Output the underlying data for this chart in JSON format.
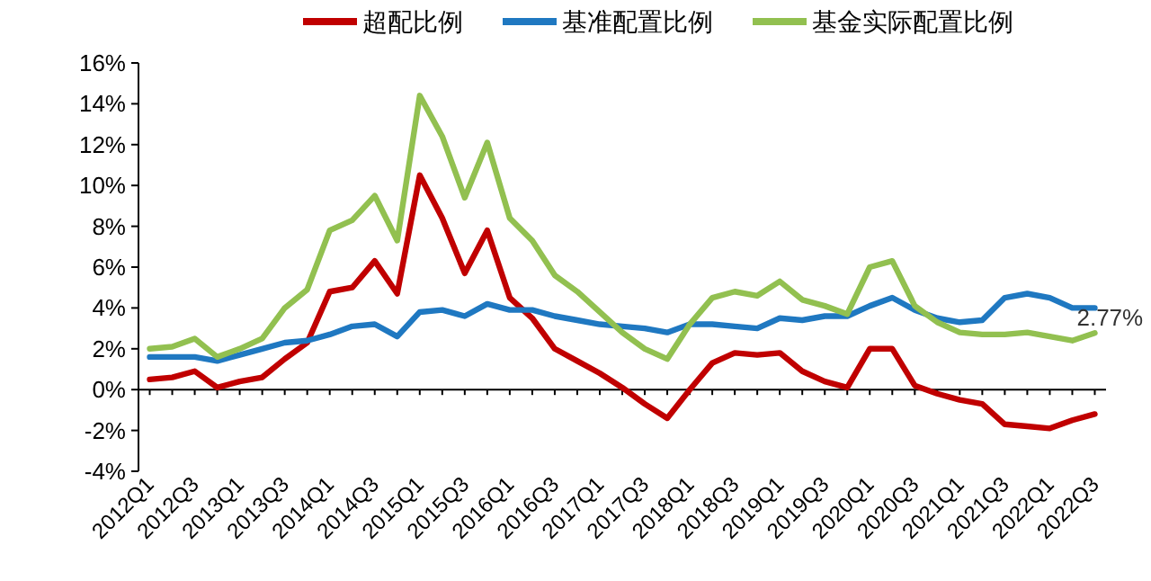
{
  "chart_data": {
    "type": "line",
    "categories": [
      "2012Q1",
      null,
      "2012Q3",
      null,
      "2013Q1",
      null,
      "2013Q3",
      null,
      "2014Q1",
      null,
      "2014Q3",
      null,
      "2015Q1",
      null,
      "2015Q3",
      null,
      "2016Q1",
      null,
      "2016Q3",
      null,
      "2017Q1",
      null,
      "2017Q3",
      null,
      "2018Q1",
      null,
      "2018Q3",
      null,
      "2019Q1",
      null,
      "2019Q3",
      null,
      "2020Q1",
      null,
      "2020Q3",
      null,
      "2021Q1",
      null,
      "2021Q3",
      null,
      "2022Q1",
      null,
      "2022Q3"
    ],
    "series": [
      {
        "name": "超配比例",
        "color": "#c00000",
        "values": [
          0.5,
          0.6,
          0.9,
          0.1,
          0.4,
          0.6,
          1.5,
          2.3,
          4.8,
          5.0,
          6.3,
          4.7,
          10.5,
          8.4,
          5.7,
          7.8,
          4.5,
          3.5,
          2.0,
          1.4,
          0.8,
          0.1,
          -0.7,
          -1.4,
          0.0,
          1.3,
          1.8,
          1.7,
          1.8,
          0.9,
          0.4,
          0.1,
          2.0,
          2.0,
          0.2,
          -0.2,
          -0.5,
          -0.7,
          -1.7,
          -1.8,
          -1.9,
          -1.5,
          -1.2
        ]
      },
      {
        "name": "基准配置比例",
        "color": "#1f78c1",
        "values": [
          1.6,
          1.6,
          1.6,
          1.4,
          1.7,
          2.0,
          2.3,
          2.4,
          2.7,
          3.1,
          3.2,
          2.6,
          3.8,
          3.9,
          3.6,
          4.2,
          3.9,
          3.9,
          3.6,
          3.4,
          3.2,
          3.1,
          3.0,
          2.8,
          3.2,
          3.2,
          3.1,
          3.0,
          3.5,
          3.4,
          3.6,
          3.6,
          4.1,
          4.5,
          3.9,
          3.5,
          3.3,
          3.4,
          4.5,
          4.7,
          4.5,
          4.0,
          4.0
        ]
      },
      {
        "name": "基金实际配置比例",
        "color": "#92c050",
        "values": [
          2.0,
          2.1,
          2.5,
          1.6,
          2.0,
          2.5,
          4.0,
          4.9,
          7.8,
          8.3,
          9.5,
          7.3,
          14.4,
          12.4,
          9.4,
          12.1,
          8.4,
          7.3,
          5.6,
          4.8,
          3.8,
          2.8,
          2.0,
          1.5,
          3.2,
          4.5,
          4.8,
          4.6,
          5.3,
          4.4,
          4.1,
          3.7,
          6.0,
          6.3,
          4.1,
          3.3,
          2.8,
          2.7,
          2.7,
          2.8,
          2.6,
          2.4,
          2.77
        ]
      }
    ],
    "ylim": [
      -4,
      16
    ],
    "yticks": [
      {
        "value": -4,
        "label": "-4%"
      },
      {
        "value": -2,
        "label": "-2%"
      },
      {
        "value": 0,
        "label": "0%"
      },
      {
        "value": 2,
        "label": "2%"
      },
      {
        "value": 4,
        "label": "4%"
      },
      {
        "value": 6,
        "label": "6%"
      },
      {
        "value": 8,
        "label": "8%"
      },
      {
        "value": 10,
        "label": "10%"
      },
      {
        "value": 12,
        "label": "12%"
      },
      {
        "value": 14,
        "label": "14%"
      },
      {
        "value": 16,
        "label": "16%"
      }
    ],
    "legend": "top",
    "annotations": [
      {
        "text": "2.77%",
        "x": "2022Q3",
        "y": 2.77
      }
    ]
  }
}
